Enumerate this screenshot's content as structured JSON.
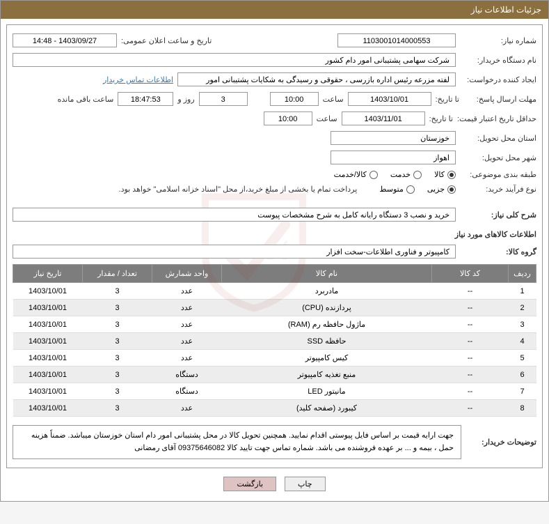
{
  "header": {
    "title": "جزئیات اطلاعات نیاز"
  },
  "fields": {
    "need_number_label": "شماره نیاز:",
    "need_number": "1103001014000553",
    "announce_label": "تاریخ و ساعت اعلان عمومی:",
    "announce_value": "1403/09/27 - 14:48",
    "buyer_org_label": "نام دستگاه خریدار:",
    "buyer_org": "شرکت سهامی پشتیبانی امور دام کشور",
    "requester_label": "ایجاد کننده درخواست:",
    "requester": "لفته مزرعه رئیس اداره بازرسی ، حقوقی و رسیدگی به شکایات  پشتیبانی امور",
    "contact_link": "اطلاعات تماس خریدار",
    "reply_deadline_label": "مهلت ارسال پاسخ:",
    "until_label": "تا تاریخ:",
    "reply_date": "1403/10/01",
    "at_label": "ساعت",
    "reply_time": "10:00",
    "days_count": "3",
    "days_and": "روز و",
    "time_left": "18:47:53",
    "time_left_label": "ساعت باقی مانده",
    "price_validity_label": "حداقل تاریخ اعتبار قیمت:",
    "price_date": "1403/11/01",
    "price_time": "10:00",
    "delivery_province_label": "استان محل تحویل:",
    "delivery_province": "خوزستان",
    "delivery_city_label": "شهر محل تحویل:",
    "delivery_city": "اهواز",
    "category_label": "طبقه بندی موضوعی:",
    "category_options": {
      "goods": "کالا",
      "service": "خدمت",
      "goods_service": "کالا/خدمت"
    },
    "purchase_type_label": "نوع فرآیند خرید:",
    "purchase_options": {
      "minor": "جزیی",
      "medium": "متوسط"
    },
    "payment_note": "پرداخت تمام یا بخشی از مبلغ خرید،از محل \"اسناد خزانه اسلامی\" خواهد بود.",
    "need_desc_label": "شرح کلی نیاز:",
    "need_desc": "خرید و نصب 3 دستگاه رایانه کامل به شرح مشخصات پیوست",
    "items_section_title": "اطلاعات کالاهای مورد نیاز",
    "goods_group_label": "گروه کالا:",
    "goods_group": "کامپیوتر و فناوری اطلاعات-سخت افزار",
    "buyer_notes_label": "توضیحات خریدار:",
    "buyer_notes": "جهت ارایه قیمت بر اساس فایل پیوستی اقدام نمایید. همچنین تحویل کالا در محل پشتیبانی امور دام استان خوزستان میباشد. ضمناً هزینه حمل ، بیمه و ... بر عهده فروشنده می باشد. شماره تماس جهت تایید کالا 09375646082 آقای رمضانی"
  },
  "table": {
    "columns": [
      "ردیف",
      "کد کالا",
      "نام کالا",
      "واحد شمارش",
      "تعداد / مقدار",
      "تاریخ نیاز"
    ],
    "rows": [
      [
        "1",
        "--",
        "مادربرد",
        "عدد",
        "3",
        "1403/10/01"
      ],
      [
        "2",
        "--",
        "پردازنده (CPU)",
        "عدد",
        "3",
        "1403/10/01"
      ],
      [
        "3",
        "--",
        "ماژول حافظه رم (RAM)",
        "عدد",
        "3",
        "1403/10/01"
      ],
      [
        "4",
        "--",
        "حافظه SSD",
        "عدد",
        "3",
        "1403/10/01"
      ],
      [
        "5",
        "--",
        "کیس کامپیوتر",
        "عدد",
        "3",
        "1403/10/01"
      ],
      [
        "6",
        "--",
        "منبع تغذیه کامپیوتر",
        "دستگاه",
        "3",
        "1403/10/01"
      ],
      [
        "7",
        "--",
        "مانیتور LED",
        "دستگاه",
        "3",
        "1403/10/01"
      ],
      [
        "8",
        "--",
        "کیبورد (صفحه کلید)",
        "عدد",
        "3",
        "1403/10/01"
      ]
    ]
  },
  "buttons": {
    "print": "چاپ",
    "back": "بازگشت"
  }
}
